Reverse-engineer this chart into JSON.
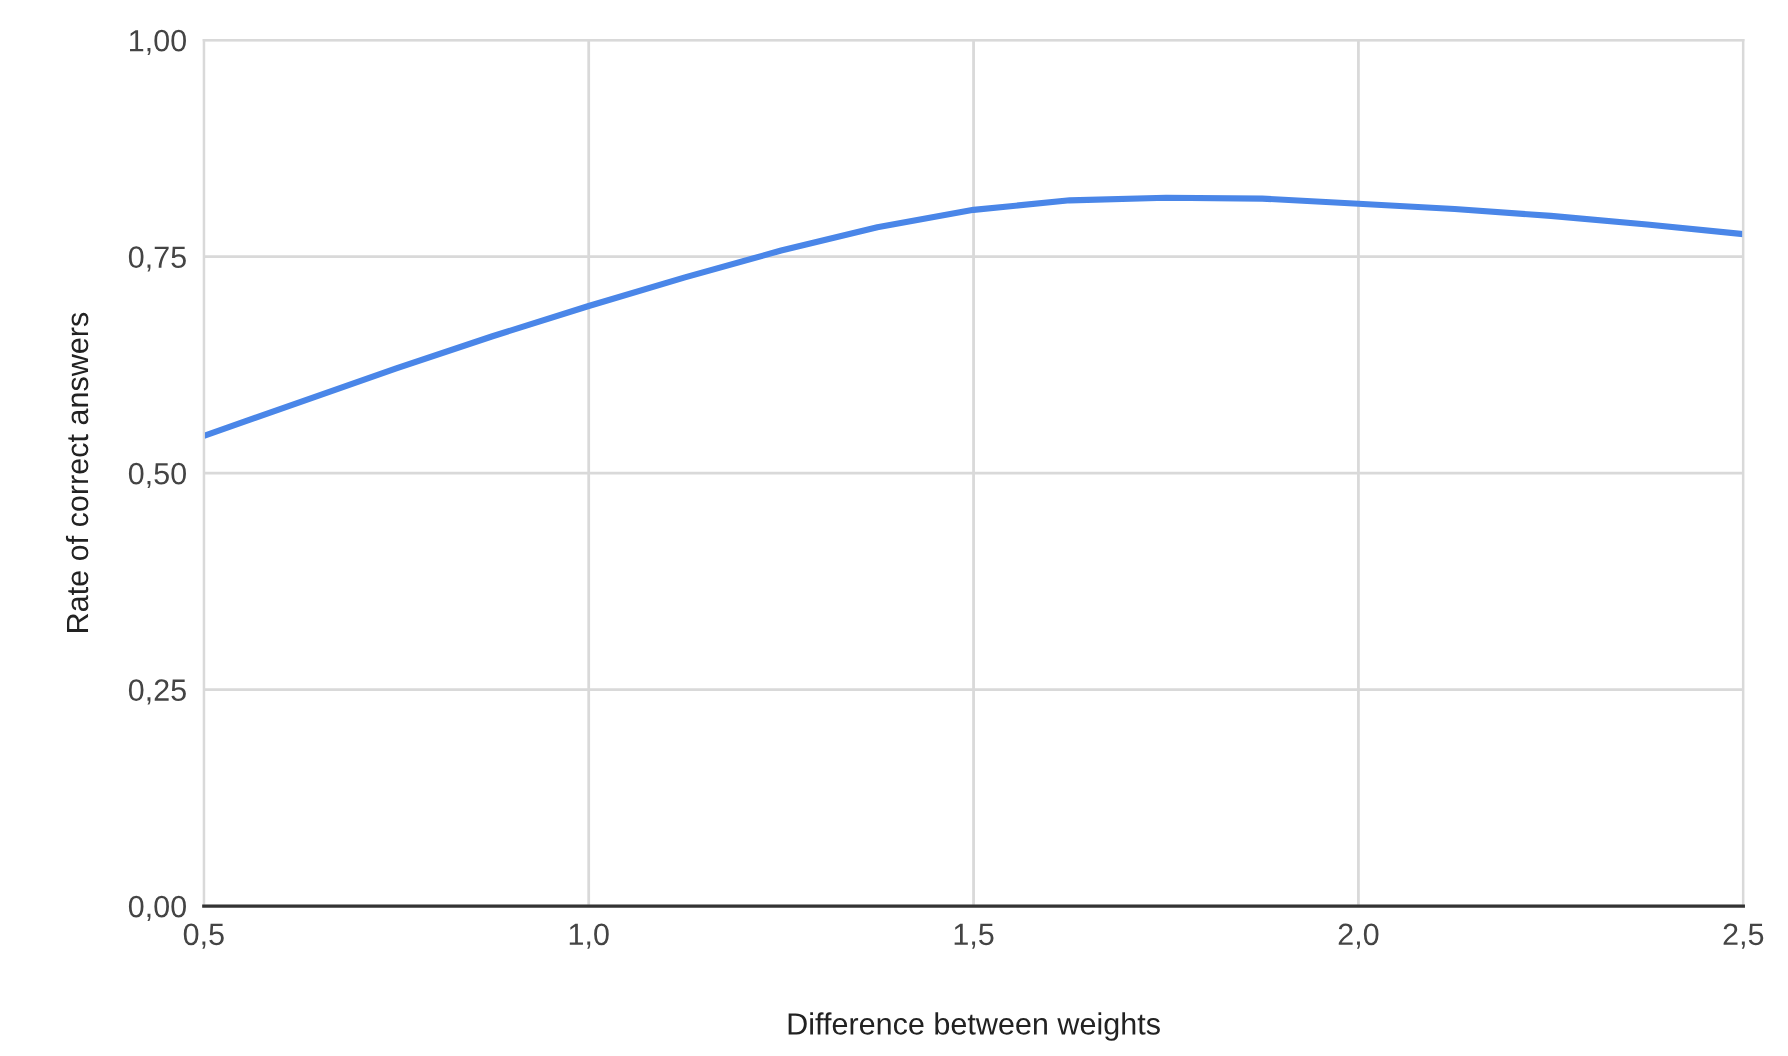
{
  "chart_data": {
    "type": "line",
    "xlabel": "Difference between weights",
    "ylabel": "Rate of correct answers",
    "x": [
      0.5,
      0.625,
      0.75,
      0.875,
      1.0,
      1.125,
      1.25,
      1.375,
      1.5,
      1.625,
      1.75,
      1.875,
      2.0,
      2.125,
      2.25,
      2.375,
      2.5
    ],
    "series": [
      {
        "color": "#4a86e8",
        "values": [
          0.543,
          0.582,
          0.621,
          0.658,
          0.693,
          0.726,
          0.757,
          0.784,
          0.804,
          0.815,
          0.818,
          0.817,
          0.811,
          0.805,
          0.797,
          0.787,
          0.776
        ]
      }
    ],
    "xlim": [
      0.5,
      2.5
    ],
    "ylim": [
      0,
      1
    ],
    "xticks": [
      {
        "value": 0.5,
        "label": "0,5"
      },
      {
        "value": 1.0,
        "label": "1,0"
      },
      {
        "value": 1.5,
        "label": "1,5"
      },
      {
        "value": 2.0,
        "label": "2,0"
      },
      {
        "value": 2.5,
        "label": "2,5"
      }
    ],
    "yticks": [
      {
        "value": 0,
        "label": "0,00"
      },
      {
        "value": 0.25,
        "label": "0,25"
      },
      {
        "value": 0.5,
        "label": "0,50"
      },
      {
        "value": 0.75,
        "label": "0,75"
      },
      {
        "value": 1.0,
        "label": "1,00"
      }
    ],
    "grid": true,
    "marker": "none",
    "line_style": "solid"
  }
}
